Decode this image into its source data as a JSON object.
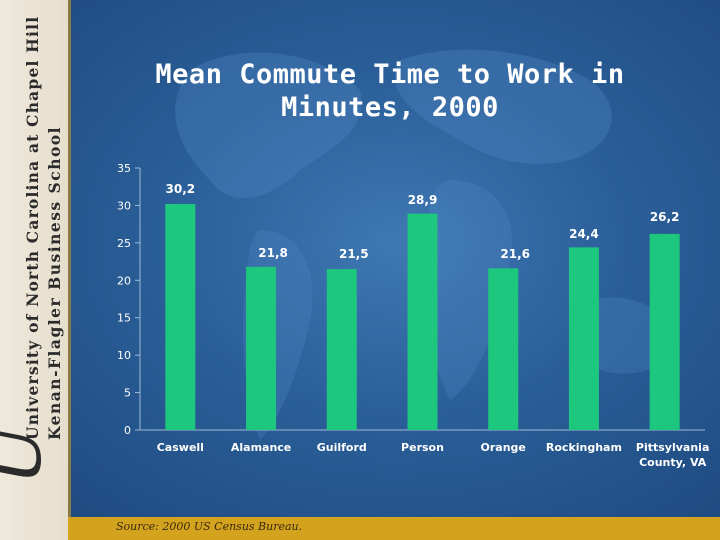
{
  "sidebar": {
    "line1": "University of North Carolina at Chapel Hill",
    "line2": "Kenan-Flagler Business School"
  },
  "title_lines": [
    "Mean Commute Time to Work in",
    "Minutes, 2000"
  ],
  "source": "Source: 2000 US Census Bureau.",
  "colors": {
    "bar": "#1ec77e",
    "text": "#ffffff",
    "bottom_bar": "#d4a31e"
  },
  "chart_data": {
    "type": "bar",
    "title": "Mean Commute Time to Work in Minutes, 2000",
    "categories": [
      "Caswell",
      "Alamance",
      "Guilford",
      "Person",
      "Orange",
      "Rockingham",
      "Pittsylvania County, VA"
    ],
    "values": [
      30.2,
      21.8,
      21.5,
      28.9,
      21.6,
      24.4,
      26.2
    ],
    "value_labels": [
      "30,2",
      "21,8",
      "21,5",
      "28,9",
      "21,6",
      "24,4",
      "26,2"
    ],
    "category_label_lines": [
      [
        "Caswell"
      ],
      [
        "Alamance"
      ],
      [
        "Guilford"
      ],
      [
        "Person"
      ],
      [
        "Orange"
      ],
      [
        "Rockingham"
      ],
      [
        "Pittsylvania",
        "County, VA"
      ]
    ],
    "ylim": [
      0,
      35
    ],
    "yticks": [
      0,
      5,
      10,
      15,
      20,
      25,
      30,
      35
    ],
    "grid": true,
    "legend": "none"
  }
}
